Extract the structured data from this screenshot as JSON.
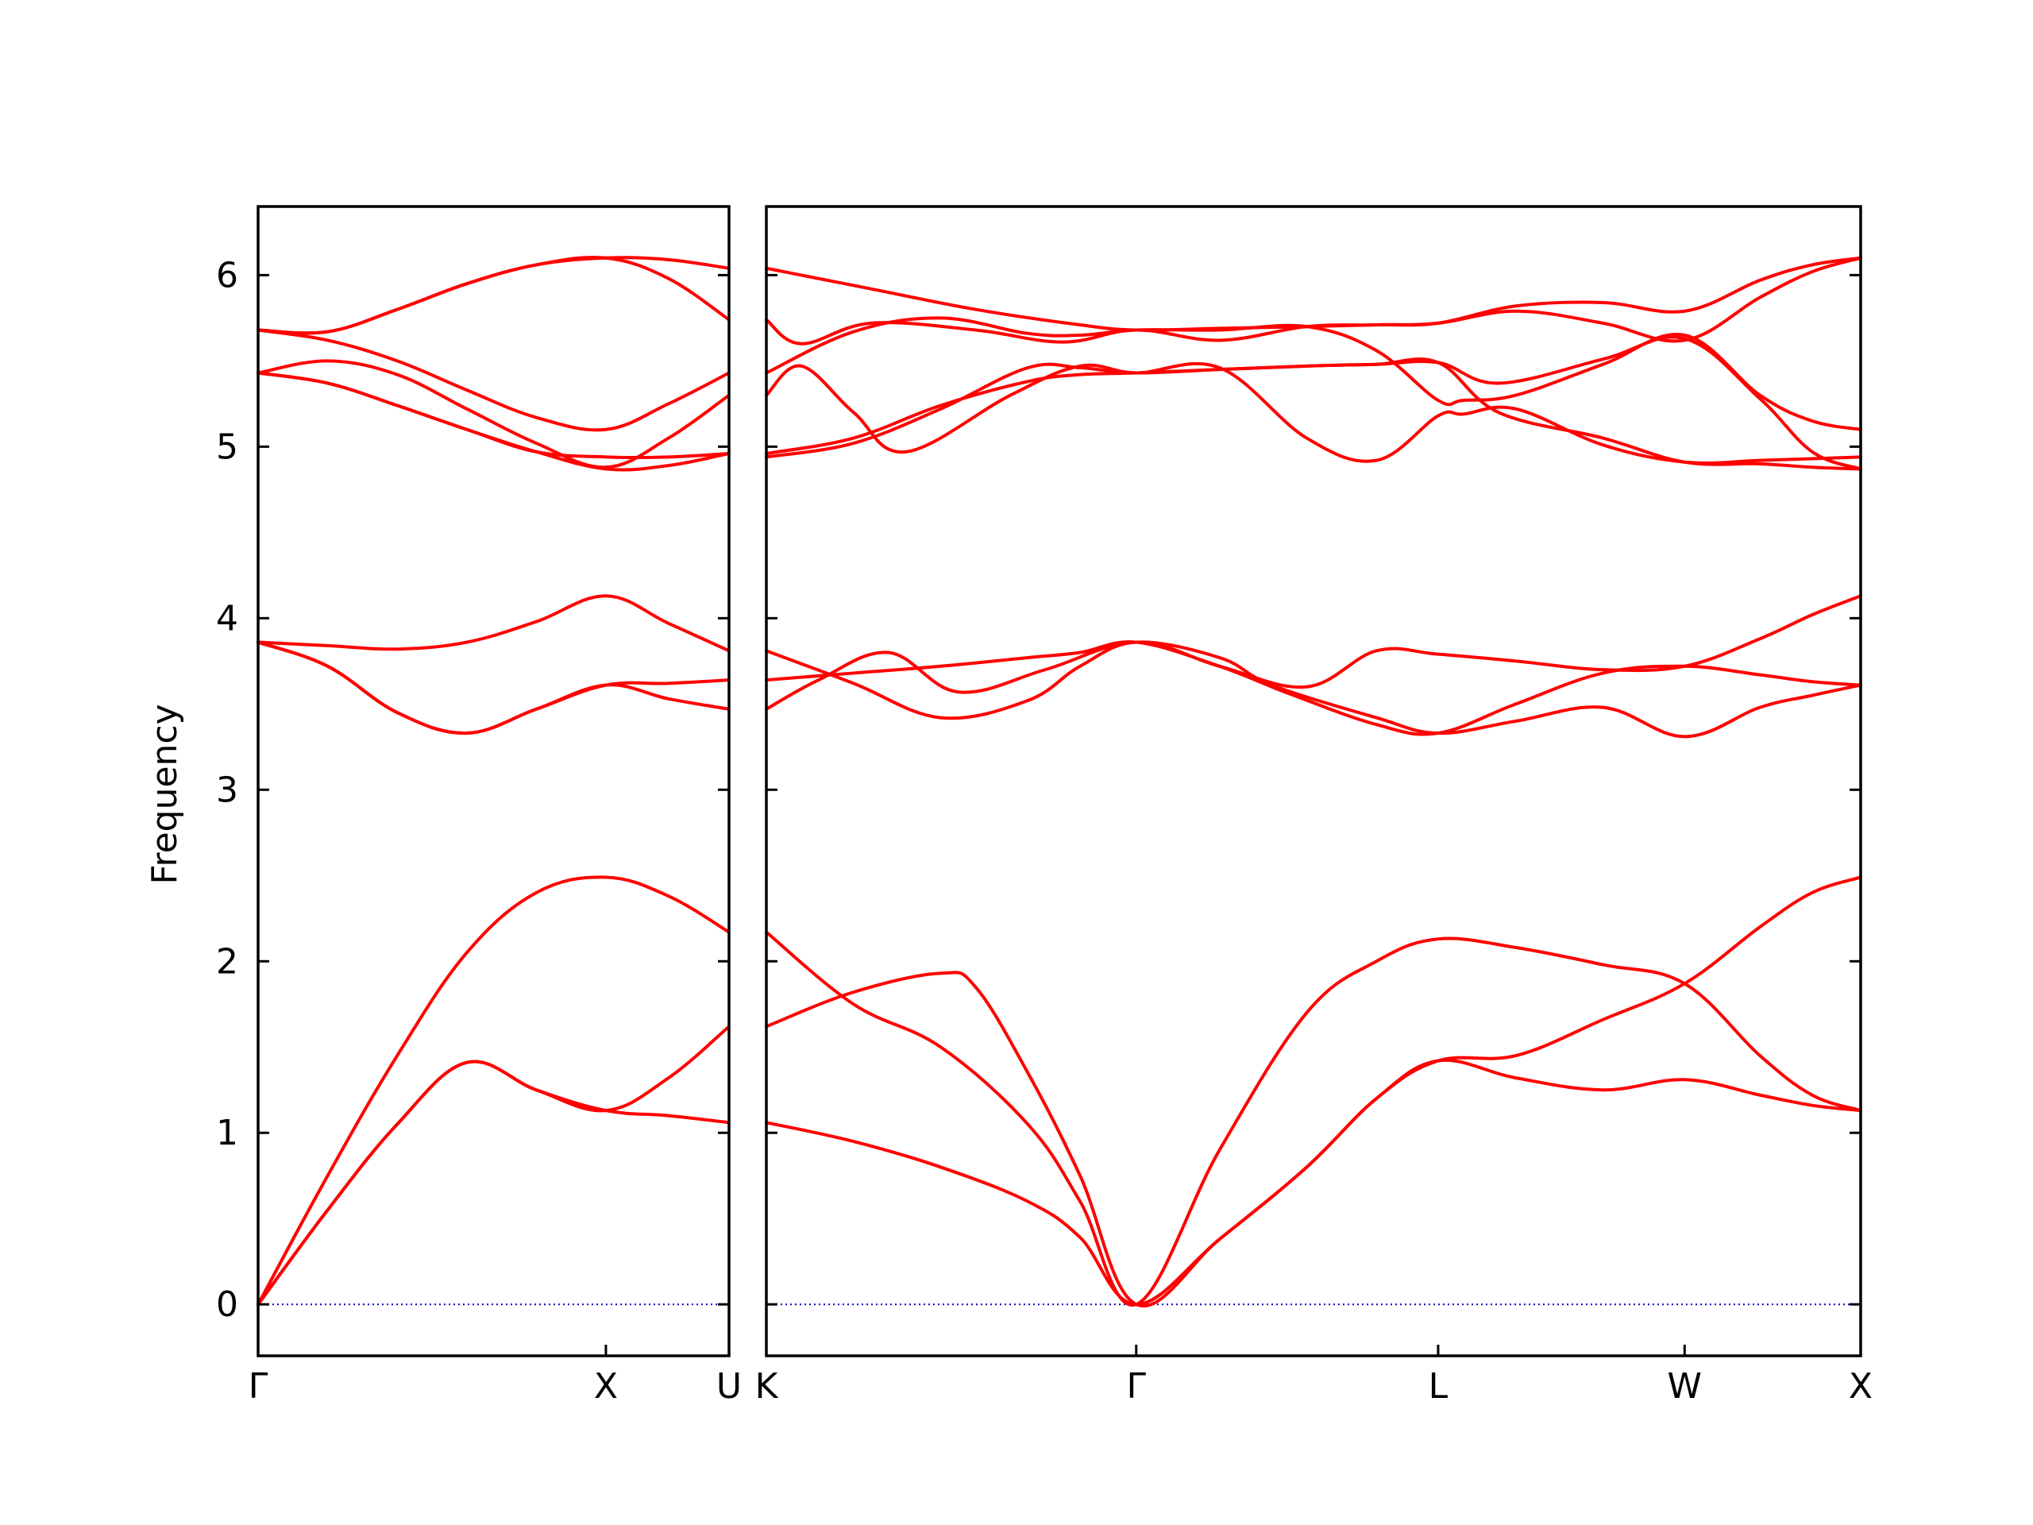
{
  "chart_data": {
    "type": "line",
    "ylabel": "Frequency",
    "xlabel": "",
    "ylim": [
      -0.3,
      6.4
    ],
    "yticks": [
      0,
      1,
      2,
      3,
      4,
      5,
      6
    ],
    "grid": false,
    "legend": "none",
    "colors": {
      "bands": "#ff0000",
      "zero_line": "#0000cc",
      "axes": "#000000"
    },
    "panels": [
      {
        "id": "left",
        "xlim": [
          0,
          1.354
        ],
        "x_ticks": [
          {
            "label": "Γ",
            "pos": 0
          },
          {
            "label": "X",
            "pos": 1.0
          },
          {
            "label": "U",
            "pos": 1.354
          }
        ],
        "series": [
          {
            "x": [
              0,
              0.2,
              0.4,
              0.6,
              0.8,
              1.0,
              1.18,
              1.354
            ],
            "y": [
              0,
              0.75,
              1.45,
              2.05,
              2.4,
              2.49,
              2.38,
              2.17
            ]
          },
          {
            "x": [
              0,
              0.2,
              0.4,
              0.6,
              0.8,
              1.0,
              1.18,
              1.354
            ],
            "y": [
              0,
              0.55,
              1.05,
              1.41,
              1.25,
              1.13,
              1.1,
              1.06
            ]
          },
          {
            "x": [
              0,
              0.2,
              0.4,
              0.6,
              0.8,
              1.0,
              1.18,
              1.354
            ],
            "y": [
              0,
              0.55,
              1.05,
              1.41,
              1.25,
              1.13,
              1.32,
              1.62
            ]
          },
          {
            "x": [
              0,
              0.2,
              0.4,
              0.6,
              0.8,
              1.0,
              1.18,
              1.354
            ],
            "y": [
              3.86,
              3.84,
              3.82,
              3.86,
              3.98,
              4.13,
              3.97,
              3.81
            ]
          },
          {
            "x": [
              0,
              0.2,
              0.4,
              0.6,
              0.8,
              1.0,
              1.18,
              1.354
            ],
            "y": [
              3.86,
              3.72,
              3.45,
              3.33,
              3.47,
              3.61,
              3.62,
              3.64
            ]
          },
          {
            "x": [
              0,
              0.2,
              0.4,
              0.6,
              0.8,
              1.0,
              1.18,
              1.354
            ],
            "y": [
              3.86,
              3.72,
              3.45,
              3.33,
              3.47,
              3.61,
              3.53,
              3.47
            ]
          },
          {
            "x": [
              0,
              0.2,
              0.4,
              0.6,
              0.8,
              1.0,
              1.18,
              1.354
            ],
            "y": [
              5.68,
              5.67,
              5.8,
              5.95,
              6.06,
              6.1,
              6.09,
              6.04
            ]
          },
          {
            "x": [
              0,
              0.2,
              0.4,
              0.6,
              0.8,
              1.0,
              1.18,
              1.354
            ],
            "y": [
              5.68,
              5.67,
              5.8,
              5.95,
              6.06,
              6.1,
              5.98,
              5.74
            ]
          },
          {
            "x": [
              0,
              0.2,
              0.4,
              0.6,
              0.8,
              1.0,
              1.18,
              1.354
            ],
            "y": [
              5.68,
              5.62,
              5.5,
              5.33,
              5.17,
              5.1,
              5.25,
              5.43
            ]
          },
          {
            "x": [
              0,
              0.2,
              0.4,
              0.6,
              0.8,
              1.0,
              1.18,
              1.354
            ],
            "y": [
              5.43,
              5.5,
              5.42,
              5.22,
              5.02,
              4.88,
              5.05,
              5.3
            ]
          },
          {
            "x": [
              0,
              0.2,
              0.4,
              0.6,
              0.8,
              1.0,
              1.18,
              1.354
            ],
            "y": [
              5.43,
              5.37,
              5.24,
              5.1,
              4.97,
              4.94,
              4.94,
              4.96
            ]
          },
          {
            "x": [
              0,
              0.2,
              0.4,
              0.6,
              0.8,
              1.0,
              1.18,
              1.354
            ],
            "y": [
              5.43,
              5.37,
              5.24,
              5.1,
              4.97,
              4.87,
              4.89,
              4.96
            ]
          }
        ]
      },
      {
        "id": "right",
        "xlim": [
          0,
          3.139
        ],
        "x_ticks": [
          {
            "label": "K",
            "pos": 0
          },
          {
            "label": "Γ",
            "pos": 1.061
          },
          {
            "label": "L",
            "pos": 1.927
          },
          {
            "label": "W",
            "pos": 2.634
          },
          {
            "label": "X",
            "pos": 3.139
          }
        ],
        "series": [
          {
            "x": [
              0,
              0.25,
              0.5,
              0.75,
              0.9,
              1.061,
              1.3,
              1.55,
              1.75,
              1.927,
              2.15,
              2.4,
              2.634,
              2.85,
              3.0,
              3.139
            ],
            "y": [
              1.06,
              0.95,
              0.8,
              0.6,
              0.39,
              0,
              0.38,
              0.8,
              1.2,
              1.42,
              1.32,
              1.25,
              1.31,
              1.22,
              1.16,
              1.13
            ]
          },
          {
            "x": [
              0,
              0.25,
              0.5,
              0.75,
              0.9,
              1.061,
              1.3,
              1.55,
              1.75,
              1.927,
              2.15,
              2.4,
              2.634,
              2.85,
              3.0,
              3.139
            ],
            "y": [
              2.17,
              1.75,
              1.5,
              1.05,
              0.6,
              0,
              0.9,
              1.7,
              2.0,
              2.13,
              2.08,
              1.98,
              1.87,
              1.45,
              1.22,
              1.13
            ]
          },
          {
            "x": [
              0,
              0.25,
              0.5,
              0.6,
              0.75,
              0.9,
              1.061,
              1.3,
              1.55,
              1.75,
              1.927,
              2.15,
              2.4,
              2.634,
              2.85,
              3.0,
              3.139
            ],
            "y": [
              1.62,
              1.82,
              1.93,
              1.85,
              1.35,
              0.75,
              0,
              0.38,
              0.8,
              1.2,
              1.42,
              1.45,
              1.66,
              1.87,
              2.2,
              2.4,
              2.49
            ]
          },
          {
            "x": [
              0,
              0.25,
              0.5,
              0.75,
              0.9,
              1.061,
              1.3,
              1.45,
              1.75,
              1.927,
              2.15,
              2.4,
              2.634,
              2.85,
              3.0,
              3.139
            ],
            "y": [
              3.81,
              3.62,
              3.42,
              3.52,
              3.72,
              3.86,
              3.77,
              3.61,
              3.42,
              3.33,
              3.4,
              3.48,
              3.31,
              3.48,
              3.55,
              3.61
            ]
          },
          {
            "x": [
              0,
              0.25,
              0.5,
              0.75,
              0.9,
              1.061,
              1.3,
              1.5,
              1.75,
              1.927,
              2.15,
              2.4,
              2.634,
              2.85,
              3.0,
              3.139
            ],
            "y": [
              3.64,
              3.68,
              3.72,
              3.77,
              3.8,
              3.86,
              3.72,
              3.56,
              3.38,
              3.33,
              3.5,
              3.68,
              3.72,
              3.67,
              3.63,
              3.61
            ]
          },
          {
            "x": [
              0,
              0.15,
              0.35,
              0.55,
              0.8,
              1.061,
              1.3,
              1.55,
              1.75,
              1.927,
              2.15,
              2.4,
              2.634,
              2.85,
              3.0,
              3.139
            ],
            "y": [
              3.47,
              3.64,
              3.8,
              3.57,
              3.7,
              3.86,
              3.72,
              3.6,
              3.81,
              3.79,
              3.75,
              3.7,
              3.72,
              3.88,
              4.02,
              4.13
            ]
          },
          {
            "x": [
              0,
              0.3,
              0.6,
              0.9,
              1.061,
              1.3,
              1.55,
              1.75,
              1.927,
              2.15,
              2.4,
              2.634,
              2.85,
              3.0,
              3.139
            ],
            "y": [
              6.04,
              5.92,
              5.8,
              5.71,
              5.68,
              5.69,
              5.7,
              5.71,
              5.72,
              5.82,
              5.84,
              5.79,
              5.97,
              6.06,
              6.1
            ]
          },
          {
            "x": [
              0,
              0.1,
              0.3,
              0.6,
              0.85,
              1.061,
              1.3,
              1.55,
              1.75,
              1.927,
              2.15,
              2.4,
              2.634,
              2.85,
              3.0,
              3.139
            ],
            "y": [
              5.74,
              5.6,
              5.72,
              5.68,
              5.61,
              5.68,
              5.62,
              5.7,
              5.71,
              5.72,
              5.79,
              5.72,
              5.62,
              5.87,
              6.02,
              6.1
            ]
          },
          {
            "x": [
              0,
              0.25,
              0.5,
              0.75,
              0.9,
              1.061,
              1.3,
              1.55,
              1.75,
              1.927,
              2.0,
              2.15,
              2.4,
              2.634,
              2.85,
              3.0,
              3.139
            ],
            "y": [
              5.43,
              5.67,
              5.75,
              5.66,
              5.65,
              5.68,
              5.68,
              5.7,
              5.56,
              5.27,
              5.27,
              5.3,
              5.48,
              5.65,
              5.3,
              5.15,
              5.1
            ]
          },
          {
            "x": [
              0,
              0.1,
              0.25,
              0.4,
              0.7,
              0.9,
              1.061,
              1.3,
              1.55,
              1.75,
              1.927,
              2.0,
              2.15,
              2.4,
              2.634,
              2.85,
              3.0,
              3.139
            ],
            "y": [
              5.3,
              5.47,
              5.2,
              4.97,
              5.3,
              5.47,
              5.43,
              5.46,
              5.05,
              4.92,
              5.18,
              5.19,
              5.22,
              5.01,
              4.91,
              4.92,
              4.93,
              4.94
            ]
          },
          {
            "x": [
              0,
              0.25,
              0.5,
              0.75,
              0.9,
              1.061,
              1.3,
              1.55,
              1.75,
              1.927,
              2.1,
              2.4,
              2.634,
              2.85,
              3.0,
              3.139
            ],
            "y": [
              4.96,
              5.05,
              5.24,
              5.38,
              5.42,
              5.43,
              5.45,
              5.47,
              5.48,
              5.49,
              5.37,
              5.51,
              5.63,
              5.28,
              4.97,
              4.87
            ]
          },
          {
            "x": [
              0,
              0.25,
              0.5,
              0.75,
              0.9,
              1.061,
              1.3,
              1.55,
              1.75,
              1.927,
              2.1,
              2.4,
              2.634,
              2.85,
              3.0,
              3.139
            ],
            "y": [
              4.94,
              5.02,
              5.22,
              5.46,
              5.46,
              5.43,
              5.45,
              5.47,
              5.48,
              5.49,
              5.2,
              5.05,
              4.91,
              4.9,
              4.88,
              4.87
            ]
          }
        ]
      }
    ]
  }
}
